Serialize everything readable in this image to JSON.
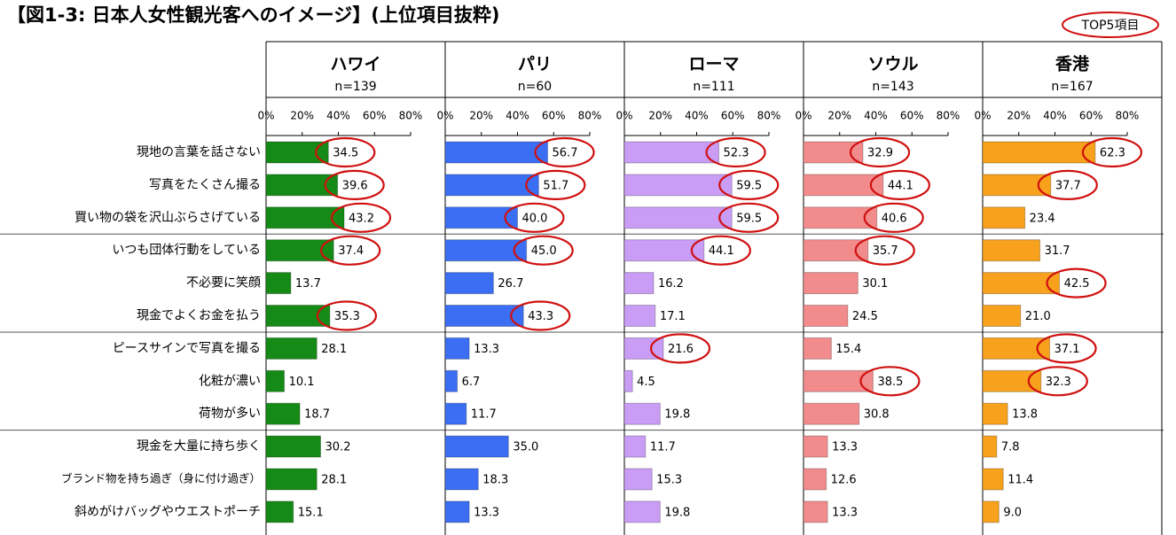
{
  "chart_data": {
    "type": "bar",
    "orientation": "horizontal",
    "title": "【図1-3: 日本人女性観光客へのイメージ】(上位項目抜粋)",
    "highlight_note": "TOP5項目",
    "categories": [
      "現地の言葉を話さない",
      "写真をたくさん撮る",
      "買い物の袋を沢山ぶらさげている",
      "いつも団体行動をしている",
      "不必要に笑顔",
      "現金でよくお金を払う",
      "ピースサインで写真を撮る",
      "化粧が濃い",
      "荷物が多い",
      "現金を大量に持ち歩く",
      "ブランド物を持ち過ぎ（身に付け過ぎ）",
      "斜めがけバッグやウエストポーチ"
    ],
    "xlim": [
      0,
      80
    ],
    "xticks": [
      {
        "value": 0,
        "label": "0%"
      },
      {
        "value": 20,
        "label": "20%"
      },
      {
        "value": 40,
        "label": "40%"
      },
      {
        "value": 60,
        "label": "60%"
      },
      {
        "value": 80,
        "label": "80%"
      }
    ],
    "series": [
      {
        "name": "ハワイ",
        "sample": "n=139",
        "color": "#168a16",
        "values": [
          34.5,
          39.6,
          43.2,
          37.4,
          13.7,
          35.3,
          28.1,
          10.1,
          18.7,
          30.2,
          28.1,
          15.1
        ],
        "value_labels": [
          "34.5",
          "39.6",
          "43.2",
          "37.4",
          "13.7",
          "35.3",
          "28.1",
          "10.1",
          "18.7",
          "30.2",
          "28.1",
          "15.1"
        ],
        "top5": [
          0,
          1,
          2,
          3,
          5
        ]
      },
      {
        "name": "パリ",
        "sample": "n=60",
        "color": "#3b6ef2",
        "values": [
          56.7,
          51.7,
          40.0,
          45.0,
          26.7,
          43.3,
          13.3,
          6.7,
          11.7,
          35.0,
          18.3,
          13.3
        ],
        "value_labels": [
          "56.7",
          "51.7",
          "40.0",
          "45.0",
          "26.7",
          "43.3",
          "13.3",
          "6.7",
          "11.7",
          "35.0",
          "18.3",
          "13.3"
        ],
        "top5": [
          0,
          1,
          2,
          3,
          5
        ]
      },
      {
        "name": "ローマ",
        "sample": "n=111",
        "color": "#c99cf6",
        "values": [
          52.3,
          59.5,
          59.5,
          44.1,
          16.2,
          17.1,
          21.6,
          4.5,
          19.8,
          11.7,
          15.3,
          19.8
        ],
        "value_labels": [
          "52.3",
          "59.5",
          "59.5",
          "44.1",
          "16.2",
          "17.1",
          "21.6",
          "4.5",
          "19.8",
          "11.7",
          "15.3",
          "19.8"
        ],
        "top5": [
          0,
          1,
          2,
          3,
          6
        ]
      },
      {
        "name": "ソウル",
        "sample": "n=143",
        "color": "#f28b8b",
        "values": [
          32.9,
          44.1,
          40.6,
          35.7,
          30.1,
          24.5,
          15.4,
          38.5,
          30.8,
          13.3,
          12.6,
          13.3
        ],
        "value_labels": [
          "32.9",
          "44.1",
          "40.6",
          "35.7",
          "30.1",
          "24.5",
          "15.4",
          "38.5",
          "30.8",
          "13.3",
          "12.6",
          "13.3"
        ],
        "top5": [
          0,
          1,
          2,
          3,
          7
        ]
      },
      {
        "name": "香港",
        "sample": "n=167",
        "color": "#f7a11c",
        "values": [
          62.3,
          37.7,
          23.4,
          31.7,
          42.5,
          21.0,
          37.1,
          32.3,
          13.8,
          7.8,
          11.4,
          9.0
        ],
        "value_labels": [
          "62.3",
          "37.7",
          "23.4",
          "31.7",
          "42.5",
          "21.0",
          "37.1",
          "32.3",
          "13.8",
          "7.8",
          "11.4",
          "9.0"
        ],
        "top5": [
          0,
          1,
          4,
          6,
          7
        ]
      }
    ]
  }
}
